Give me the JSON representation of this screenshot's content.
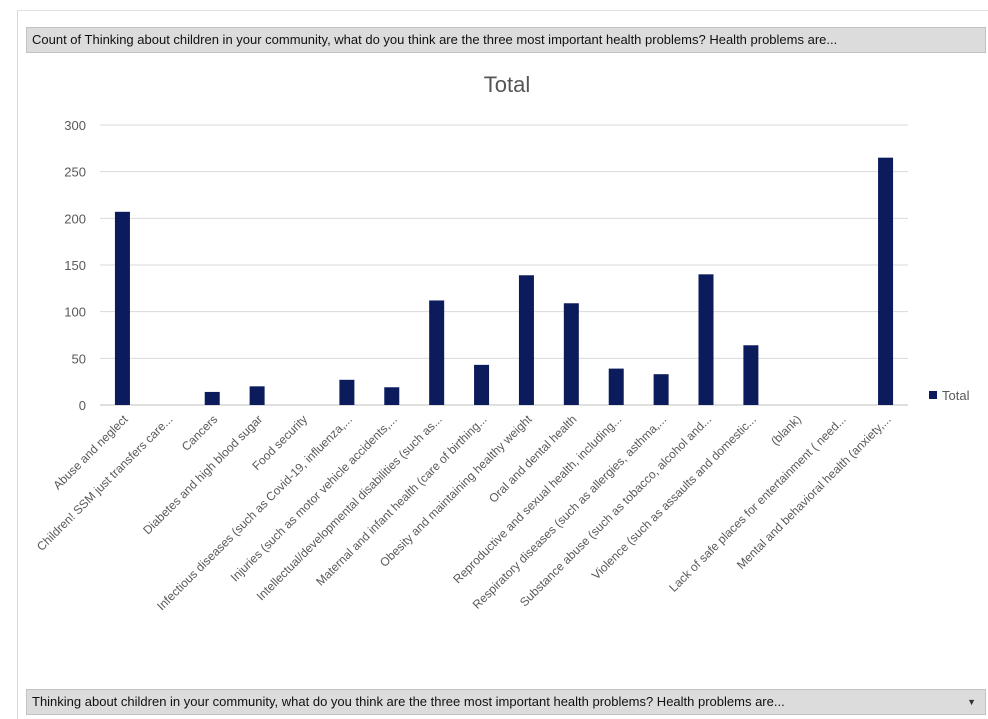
{
  "filter_bar": {
    "text": "Count of Thinking about children in your community, what do you think are the three most important health problems? Health problems are..."
  },
  "axis_bar": {
    "text": "Thinking about children in your community, what do you think are the three most important health problems? Health problems are...",
    "dropdown_icon": "dropdown-arrow-icon"
  },
  "chart_data": {
    "type": "bar",
    "title": "Total",
    "xlabel": "",
    "ylabel": "",
    "ylim": [
      0,
      300
    ],
    "yticks": [
      0,
      50,
      100,
      150,
      200,
      250,
      300
    ],
    "grid": true,
    "legend_position": "right",
    "categories": [
      "Abuse and neglect",
      "Children! SSM just transfers care...",
      "Cancers",
      "Diabetes and high blood sugar",
      "Food security",
      "Infectious diseases (such as Covid-19, influenza,...",
      "Injuries (such as motor vehicle accidents,...",
      "Intellectual/developmental disabilities (such as...",
      "Maternal and infant health (care of birthing...",
      "Obesity and maintaining healthy weight",
      "Oral and dental health",
      "Reproductive and sexual health, including...",
      "Respiratory diseases (such as allergies, asthma,...",
      "Substance abuse (such as tobacco, alcohol and...",
      "Violence (such as assaults and domestic...",
      "(blank)",
      "Lack of safe places for entertainment ( need...",
      "Mental and behavioral health (anxiety,..."
    ],
    "series": [
      {
        "name": "Total",
        "color": "#0b1b5c",
        "values": [
          207,
          0,
          14,
          20,
          0,
          27,
          19,
          112,
          43,
          139,
          109,
          39,
          33,
          140,
          64,
          0,
          0,
          265
        ]
      }
    ]
  }
}
